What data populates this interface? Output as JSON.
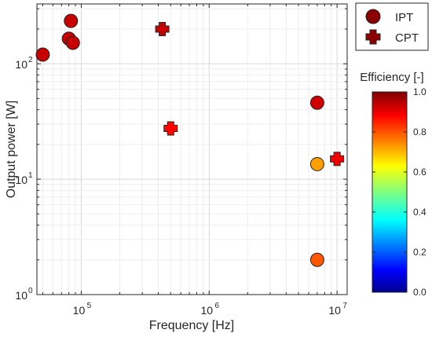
{
  "chart_data": {
    "type": "scatter",
    "title": "",
    "xlabel": "Frequency [Hz]",
    "ylabel": "Output power [W]",
    "x_scale": "log",
    "y_scale": "log",
    "xlim": [
      45000,
      12000000
    ],
    "ylim": [
      1,
      330
    ],
    "grid": true,
    "x_major_ticks": [
      {
        "value": 100000,
        "base": "10",
        "exp": "5"
      },
      {
        "value": 1000000,
        "base": "10",
        "exp": "6"
      },
      {
        "value": 10000000,
        "base": "10",
        "exp": "7"
      }
    ],
    "y_major_ticks": [
      {
        "value": 1,
        "base": "10",
        "exp": "0"
      },
      {
        "value": 10,
        "base": "10",
        "exp": "1"
      },
      {
        "value": 100,
        "base": "10",
        "exp": "2"
      }
    ],
    "legend": {
      "position": "top-right-outside",
      "entries": [
        {
          "label": "IPT",
          "marker": "circle",
          "color": "#8b0000"
        },
        {
          "label": "CPT",
          "marker": "plus",
          "color": "#8b0000"
        }
      ]
    },
    "colorbar": {
      "label": "Efficiency [-]",
      "min": 0,
      "max": 1,
      "ticks": [
        "0.0",
        "0.2",
        "0.4",
        "0.6",
        "0.8",
        "1.0"
      ],
      "colormap": "jet"
    },
    "series": [
      {
        "name": "IPT",
        "marker": "circle",
        "points": [
          {
            "x": 50000,
            "y": 120,
            "efficiency": 0.93
          },
          {
            "x": 80000,
            "y": 165,
            "efficiency": 0.93
          },
          {
            "x": 83000,
            "y": 235,
            "efficiency": 0.93
          },
          {
            "x": 86000,
            "y": 152,
            "efficiency": 0.93
          },
          {
            "x": 7000000,
            "y": 46,
            "efficiency": 0.92
          },
          {
            "x": 7000000,
            "y": 13.5,
            "efficiency": 0.72
          },
          {
            "x": 7000000,
            "y": 2,
            "efficiency": 0.79
          }
        ]
      },
      {
        "name": "CPT",
        "marker": "plus",
        "points": [
          {
            "x": 430000,
            "y": 200,
            "efficiency": 0.93
          },
          {
            "x": 500000,
            "y": 27.5,
            "efficiency": 0.87
          },
          {
            "x": 10000000,
            "y": 15,
            "efficiency": 0.89
          }
        ]
      }
    ]
  }
}
